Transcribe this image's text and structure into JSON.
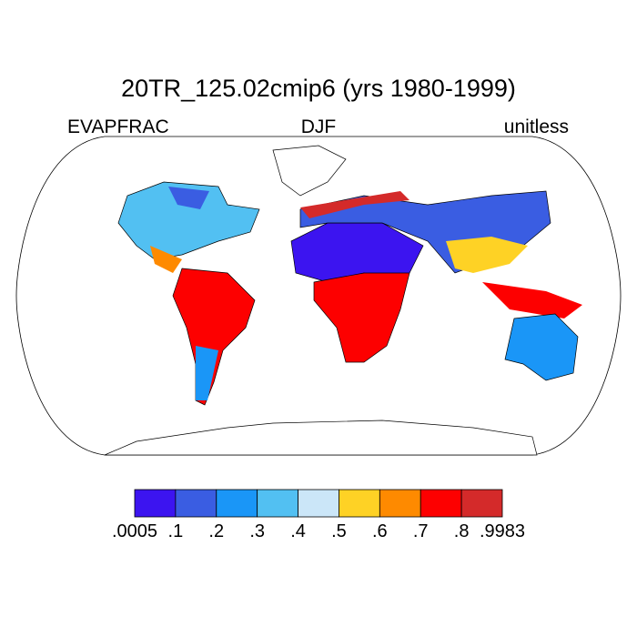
{
  "title": "20TR_125.02cmip6 (yrs 1980-1999)",
  "left_label": "EVAPFRAC",
  "center_label": "DJF",
  "right_label": "unitless",
  "colorbar": {
    "colors": [
      "#3c14f0",
      "#3a5de2",
      "#1a96f7",
      "#52c0f2",
      "#cbe6f8",
      "#fed225",
      "#fe8a00",
      "#fd0000",
      "#d42a2a"
    ],
    "ticks": [
      {
        "value": 0.0005,
        "label": ".0005"
      },
      {
        "value": 0.1,
        "label": ".1"
      },
      {
        "value": 0.2,
        "label": ".2"
      },
      {
        "value": 0.3,
        "label": ".3"
      },
      {
        "value": 0.4,
        "label": ".4"
      },
      {
        "value": 0.5,
        "label": ".5"
      },
      {
        "value": 0.6,
        "label": ".6"
      },
      {
        "value": 0.7,
        "label": ".7"
      },
      {
        "value": 0.8,
        "label": ".8"
      },
      {
        "value": 0.9983,
        "label": ".9983"
      }
    ]
  }
}
